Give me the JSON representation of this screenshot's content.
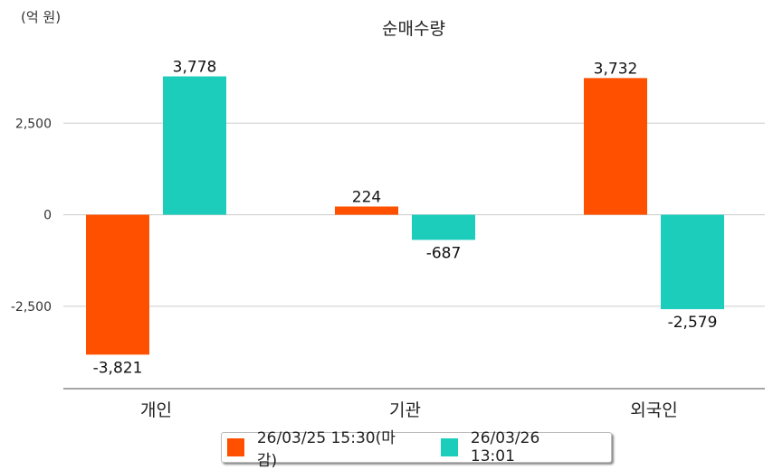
{
  "chart_data": {
    "type": "bar",
    "title": "순매수량",
    "unit_label": "(억 원)",
    "categories": [
      "개인",
      "기관",
      "외국인"
    ],
    "series": [
      {
        "name": "26/03/25 15:30(마감)",
        "color": "#ff5000",
        "values": [
          -3821,
          224,
          3732
        ],
        "labels": [
          "-3,821",
          "224",
          "3,732"
        ]
      },
      {
        "name": "26/03/26 13:01",
        "color": "#1ccdbb",
        "values": [
          3778,
          -687,
          -2579
        ],
        "labels": [
          "3,778",
          "-687",
          "-2,579"
        ]
      }
    ],
    "yticks": [
      2500,
      0,
      -2500
    ],
    "ytick_labels": [
      "2,500",
      "0",
      "-2,500"
    ],
    "ylim": [
      -4750,
      5000
    ],
    "grid": true,
    "legend_position": "bottom"
  }
}
